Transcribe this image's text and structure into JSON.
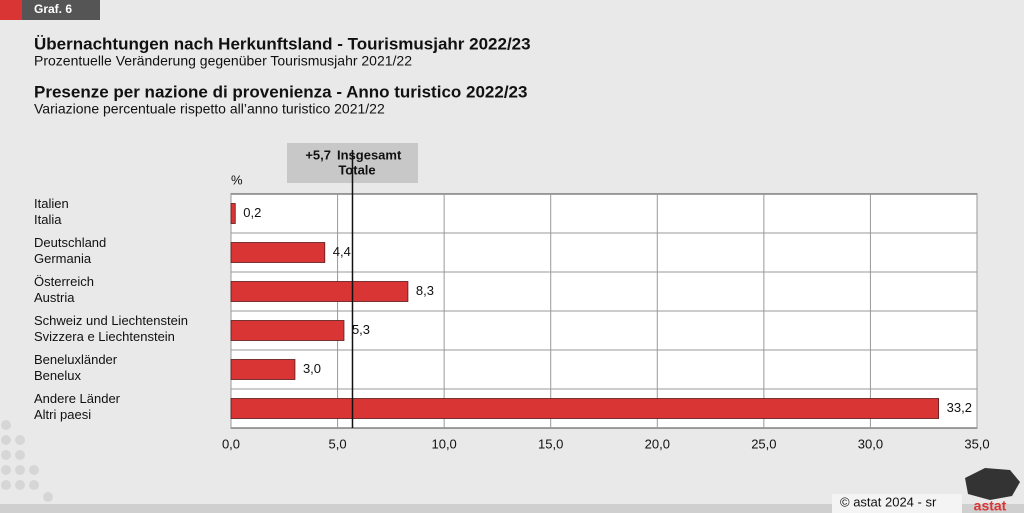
{
  "figure_label": "Graf. 6",
  "titles": [
    {
      "title": "Übernachtungen nach Herkunftsland - Tourismusjahr 2022/23",
      "subtitle": "Prozentuelle Veränderung gegenüber Tourismusjahr 2021/22"
    },
    {
      "title": "Presenze per nazione di provenienza - Anno turistico 2022/23",
      "subtitle": "Variazione percentuale rispetto all’anno turistico 2021/22"
    }
  ],
  "source": "© astat 2024 - sr",
  "logo": "astat",
  "chart_data": {
    "type": "bar",
    "orientation": "horizontal",
    "x_label": "%",
    "categories": [
      [
        "Italien",
        "Italia"
      ],
      [
        "Deutschland",
        "Germania"
      ],
      [
        "Österreich",
        "Austria"
      ],
      [
        "Schweiz und Liechtenstein",
        "Svizzera e Liechtenstein"
      ],
      [
        "Beneluxländer",
        "Benelux"
      ],
      [
        "Andere Länder",
        "Altri paesi"
      ]
    ],
    "values": [
      0.2,
      4.4,
      8.3,
      5.3,
      3.0,
      33.2
    ],
    "value_labels": [
      "0,2",
      "4,4",
      "8,3",
      "5,3",
      "3,0",
      "33,2"
    ],
    "color": "#d93535",
    "xlim": [
      0,
      35
    ],
    "xticks": [
      {
        "value": 0,
        "label": "0,0"
      },
      {
        "value": 5,
        "label": "5,0"
      },
      {
        "value": 10,
        "label": "10,0"
      },
      {
        "value": 15,
        "label": "15,0"
      },
      {
        "value": 20,
        "label": "20,0"
      },
      {
        "value": 25,
        "label": "25,0"
      },
      {
        "value": 30,
        "label": "30,0"
      },
      {
        "value": 35,
        "label": "35,0"
      }
    ],
    "grid": true,
    "reference": {
      "value": 5.7,
      "value_label": "+5,7",
      "label": [
        "Insgesamt",
        "Totale"
      ]
    }
  }
}
